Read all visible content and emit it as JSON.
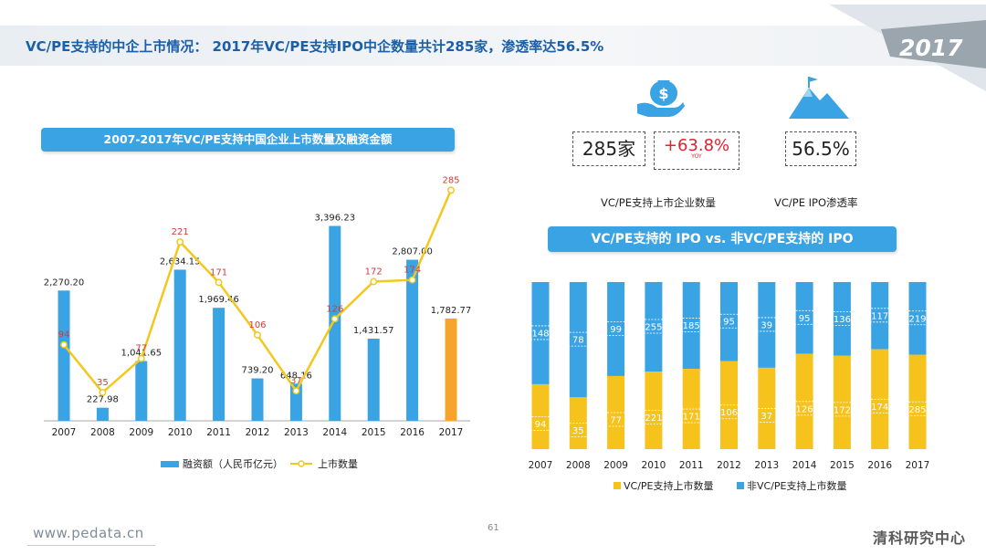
{
  "header": {
    "title": "VC/PE支持的中企上市情况： 2017年VC/PE支持IPO中企数量共计285家，渗透率达56.5%",
    "year_badge": "2017"
  },
  "kpis": {
    "count": "285家",
    "growth": "+63.8%",
    "growth_sub": "YOY",
    "count_label": "VC/PE支持上市企业数量",
    "rate": "56.5%",
    "rate_label": "VC/PE IPO渗透率"
  },
  "icons": {
    "money": "money-bag-hand-icon",
    "mountain": "mountain-flag-icon"
  },
  "footer": {
    "url": "www.pedata.cn",
    "page": "61",
    "brand": "清科研究中心"
  },
  "colors": {
    "blue": "#3aa3e3",
    "yellow": "#f6c21c",
    "orange": "#f6a52a",
    "line": "#f2c81f",
    "red_label": "#d03b3b"
  },
  "chart_data": [
    {
      "type": "bar",
      "title": "2007-2017年VC/PE支持中国企业上市数量及融资金额",
      "categories": [
        "2007",
        "2008",
        "2009",
        "2010",
        "2011",
        "2012",
        "2013",
        "2014",
        "2015",
        "2016",
        "2017"
      ],
      "series": [
        {
          "name": "融资额（人民币亿元）",
          "kind": "bar",
          "values": [
            2270.2,
            227.98,
            1041.65,
            2634.15,
            1969.46,
            739.2,
            648.16,
            3396.23,
            1431.57,
            2807.0,
            1782.77
          ],
          "labels": [
            "2,270.20",
            "227.98",
            "1,041.65",
            "2,634.15",
            "1,969.46",
            "739.20",
            "648.16",
            "3,396.23",
            "1,431.57",
            "2,807.00",
            "1,782.77"
          ]
        },
        {
          "name": "上市数量",
          "kind": "line",
          "values": [
            94,
            35,
            77,
            221,
            171,
            106,
            37,
            126,
            172,
            174,
            285
          ]
        }
      ],
      "ylim": [
        0,
        3500
      ],
      "ylim2": [
        0,
        300
      ],
      "legend_position": "bottom"
    },
    {
      "type": "bar",
      "stacked": true,
      "title": "VC/PE支持的 IPO vs. 非VC/PE支持的 IPO",
      "categories": [
        "2007",
        "2008",
        "2009",
        "2010",
        "2011",
        "2012",
        "2013",
        "2014",
        "2015",
        "2016",
        "2017"
      ],
      "series": [
        {
          "name": "VC/PE支持上市数量",
          "values": [
            94,
            35,
            77,
            221,
            171,
            106,
            37,
            126,
            172,
            174,
            285
          ]
        },
        {
          "name": "非VC/PE支持上市数量",
          "values": [
            148,
            78,
            99,
            255,
            185,
            95,
            39,
            95,
            136,
            117,
            219
          ]
        }
      ],
      "unit": "percent-stacked",
      "legend_position": "bottom"
    }
  ]
}
